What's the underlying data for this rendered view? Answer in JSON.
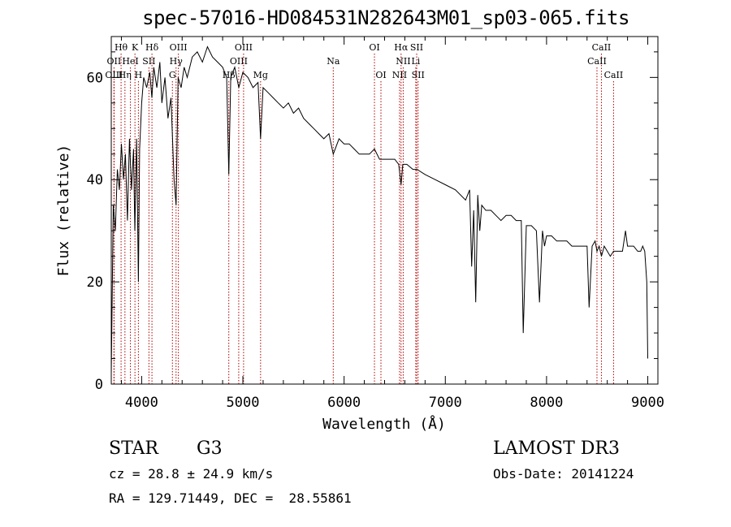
{
  "chart_data": {
    "type": "line",
    "title": "spec-57016-HD084531N282643M01_sp03-065.fits",
    "xlabel": "Wavelength (Å)",
    "ylabel": "Flux (relative)",
    "xlim": [
      3700,
      9100
    ],
    "ylim": [
      0,
      68
    ],
    "xticks": [
      4000,
      5000,
      6000,
      7000,
      8000,
      9000
    ],
    "yticks": [
      0,
      20,
      40,
      60
    ],
    "series": [
      {
        "name": "spectrum",
        "x": [
          3700,
          3720,
          3740,
          3760,
          3780,
          3800,
          3820,
          3840,
          3860,
          3880,
          3900,
          3920,
          3933,
          3950,
          3968,
          3980,
          4000,
          4020,
          4050,
          4080,
          4101,
          4120,
          4150,
          4180,
          4200,
          4230,
          4260,
          4290,
          4320,
          4340,
          4360,
          4390,
          4420,
          4450,
          4500,
          4550,
          4600,
          4650,
          4700,
          4750,
          4800,
          4840,
          4861,
          4880,
          4920,
          4960,
          5000,
          5050,
          5100,
          5150,
          5175,
          5200,
          5250,
          5300,
          5350,
          5400,
          5450,
          5500,
          5550,
          5600,
          5650,
          5700,
          5750,
          5800,
          5850,
          5893,
          5950,
          6000,
          6050,
          6100,
          6150,
          6200,
          6250,
          6300,
          6350,
          6400,
          6450,
          6500,
          6540,
          6563,
          6580,
          6620,
          6680,
          6720,
          6800,
          6900,
          7000,
          7100,
          7200,
          7240,
          7260,
          7280,
          7300,
          7320,
          7340,
          7360,
          7400,
          7450,
          7500,
          7550,
          7600,
          7650,
          7700,
          7750,
          7770,
          7800,
          7850,
          7900,
          7930,
          7960,
          7980,
          8000,
          8050,
          8100,
          8150,
          8200,
          8250,
          8300,
          8350,
          8400,
          8420,
          8450,
          8480,
          8498,
          8520,
          8542,
          8570,
          8600,
          8630,
          8662,
          8700,
          8750,
          8780,
          8800,
          8830,
          8860,
          8900,
          8930,
          8950,
          8970,
          8990,
          9000
        ],
        "y": [
          2,
          35,
          30,
          42,
          38,
          47,
          40,
          45,
          32,
          48,
          38,
          46,
          30,
          48,
          20,
          46,
          55,
          60,
          58,
          61,
          56,
          62,
          58,
          63,
          55,
          60,
          52,
          56,
          40,
          35,
          60,
          58,
          62,
          60,
          64,
          65,
          63,
          66,
          64,
          63,
          62,
          60,
          41,
          60,
          62,
          58,
          61,
          60,
          58,
          59,
          48,
          58,
          57,
          56,
          55,
          54,
          55,
          53,
          54,
          52,
          51,
          50,
          49,
          48,
          49,
          45,
          48,
          47,
          47,
          46,
          45,
          45,
          45,
          46,
          44,
          44,
          44,
          44,
          43,
          39,
          43,
          43,
          42,
          42,
          41,
          40,
          39,
          38,
          36,
          38,
          23,
          34,
          16,
          37,
          30,
          35,
          34,
          34,
          33,
          32,
          33,
          33,
          32,
          32,
          10,
          31,
          31,
          30,
          16,
          30,
          27,
          29,
          29,
          28,
          28,
          28,
          27,
          27,
          27,
          27,
          15,
          27,
          28,
          26,
          27,
          25,
          27,
          26,
          25,
          26,
          26,
          26,
          30,
          27,
          27,
          27,
          26,
          26,
          27,
          26,
          20,
          5
        ],
        "color": "#000000"
      }
    ],
    "line_color": "#b00000",
    "spectral_lines": [
      {
        "label": "Hθ",
        "x": 3797,
        "row": 1
      },
      {
        "label": "K",
        "x": 3934,
        "row": 1
      },
      {
        "label": "Hδ",
        "x": 4102,
        "row": 1
      },
      {
        "label": "OIII",
        "x": 4363,
        "row": 1
      },
      {
        "label": "OIII",
        "x": 5007,
        "row": 1
      },
      {
        "label": "OI",
        "x": 6300,
        "row": 1
      },
      {
        "label": "Hα",
        "x": 6563,
        "row": 1
      },
      {
        "label": "SII",
        "x": 6717,
        "row": 1
      },
      {
        "label": "CaII",
        "x": 8542,
        "row": 1
      },
      {
        "label": "OII",
        "x": 3727,
        "row": 2
      },
      {
        "label": "HeI",
        "x": 3889,
        "row": 2
      },
      {
        "label": "SII",
        "x": 4072,
        "row": 2
      },
      {
        "label": "Hγ",
        "x": 4340,
        "row": 2
      },
      {
        "label": "OIII",
        "x": 4959,
        "row": 2
      },
      {
        "label": "Na",
        "x": 5893,
        "row": 2
      },
      {
        "label": "NII",
        "x": 6584,
        "row": 2
      },
      {
        "label": "Li",
        "x": 6708,
        "row": 2
      },
      {
        "label": "CaII",
        "x": 8498,
        "row": 2
      },
      {
        "label": "OIII",
        "x": 3727,
        "row": 3
      },
      {
        "label": "Hη",
        "x": 3835,
        "row": 3
      },
      {
        "label": "H",
        "x": 3968,
        "row": 3
      },
      {
        "label": "G",
        "x": 4304,
        "row": 3
      },
      {
        "label": "Hβ",
        "x": 4861,
        "row": 3
      },
      {
        "label": "Mg",
        "x": 5175,
        "row": 3
      },
      {
        "label": "OI",
        "x": 6364,
        "row": 3
      },
      {
        "label": "NII",
        "x": 6548,
        "row": 3
      },
      {
        "label": "SII",
        "x": 6731,
        "row": 3
      },
      {
        "label": "CaII",
        "x": 8662,
        "row": 3
      }
    ]
  },
  "info": {
    "class_label": "STAR",
    "subclass": "G3",
    "survey": "LAMOST DR3",
    "cz": "cz = 28.8 ± 24.9 km/s",
    "obs_date": "Obs-Date: 20141224",
    "coords": "RA = 129.71449, DEC =  28.55861"
  }
}
